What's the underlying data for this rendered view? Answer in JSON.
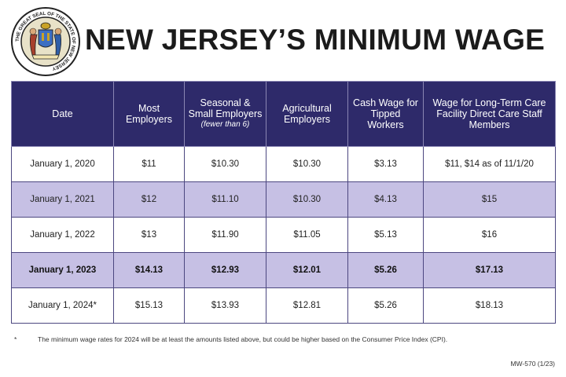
{
  "header": {
    "title": "NEW JERSEY’S MINIMUM WAGE",
    "seal_icon": "nj-state-seal-icon",
    "seal_text": "THE GREAT SEAL OF THE STATE OF NEW JERSEY"
  },
  "table": {
    "headers": {
      "date": "Date",
      "most": "Most Employers",
      "seasonal": "Seasonal & Small Employers",
      "seasonal_note": "(fewer than 6)",
      "agricultural": "Agricultural Employers",
      "tipped": "Cash Wage for Tipped Workers",
      "longterm": "Wage for Long-Term Care Facility Direct Care Staff Members"
    },
    "rows": [
      [
        "January 1, 2020",
        "$11",
        "$10.30",
        "$10.30",
        "$3.13",
        "$11, $14 as of 11/1/20"
      ],
      [
        "January 1, 2021",
        "$12",
        "$11.10",
        "$10.30",
        "$4.13",
        "$15"
      ],
      [
        "January 1, 2022",
        "$13",
        "$11.90",
        "$11.05",
        "$5.13",
        "$16"
      ],
      [
        "January 1, 2023",
        "$14.13",
        "$12.93",
        "$12.01",
        "$5.26",
        "$17.13"
      ],
      [
        "January 1, 2024*",
        "$15.13",
        "$13.93",
        "$12.81",
        "$5.26",
        "$18.13"
      ]
    ]
  },
  "footnote": {
    "marker": "*",
    "text": "The minimum wage rates for 2024 will be at least the amounts listed above, but could be higher based on the Consumer Price Index (CPI)."
  },
  "form_code": "MW-570 (1/23)",
  "colors": {
    "header_bg": "#2e2a6a",
    "shaded_row": "#c6c0e4"
  }
}
